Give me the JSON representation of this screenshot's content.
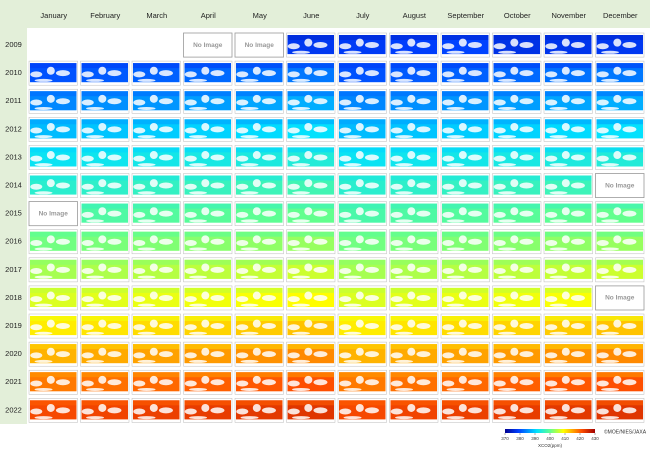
{
  "header": {
    "months": [
      "January",
      "February",
      "March",
      "April",
      "May",
      "June",
      "July",
      "August",
      "September",
      "October",
      "November",
      "December"
    ]
  },
  "rows": [
    {
      "year": "2009",
      "cells": [
        "No Image",
        "No Image",
        null,
        null,
        null,
        null,
        null,
        null,
        null
      ]
    },
    {
      "year": "2010",
      "cells": [
        null,
        null,
        null,
        null,
        null,
        null,
        null,
        null,
        null,
        null,
        null,
        null
      ]
    },
    {
      "year": "2011",
      "cells": [
        null,
        null,
        null,
        null,
        null,
        null,
        null,
        null,
        null,
        null,
        null,
        null
      ]
    },
    {
      "year": "2012",
      "cells": [
        null,
        null,
        null,
        null,
        null,
        null,
        null,
        null,
        null,
        null,
        null,
        null
      ]
    },
    {
      "year": "2013",
      "cells": [
        null,
        null,
        null,
        null,
        null,
        null,
        null,
        null,
        null,
        null,
        null,
        null
      ]
    },
    {
      "year": "2014",
      "cells": [
        null,
        null,
        null,
        null,
        null,
        null,
        null,
        null,
        null,
        null,
        null,
        "No Image"
      ]
    },
    {
      "year": "2015",
      "cells": [
        "No Image",
        null,
        null,
        null,
        null,
        null,
        null,
        null,
        null,
        null,
        null,
        null
      ]
    },
    {
      "year": "2016",
      "cells": [
        null,
        null,
        null,
        null,
        null,
        null,
        null,
        null,
        null,
        null,
        null,
        null
      ]
    },
    {
      "year": "2017",
      "cells": [
        null,
        null,
        null,
        null,
        null,
        null,
        null,
        null,
        null,
        null,
        null,
        null
      ]
    },
    {
      "year": "2018",
      "cells": [
        null,
        null,
        null,
        null,
        null,
        null,
        null,
        null,
        null,
        null,
        null,
        "No Image"
      ]
    },
    {
      "year": "2019",
      "cells": [
        null,
        null,
        null,
        null,
        null,
        null,
        null,
        null,
        null,
        null,
        null,
        null
      ]
    },
    {
      "year": "2020",
      "cells": [
        null,
        null,
        null,
        null,
        null,
        null,
        null,
        null,
        null,
        null,
        null,
        null
      ]
    },
    {
      "year": "2021",
      "cells": [
        null,
        null,
        null,
        null,
        null,
        null,
        null,
        null,
        null,
        null,
        null,
        null
      ]
    },
    {
      "year": "2022",
      "cells": [
        null,
        null,
        null,
        null,
        null,
        null,
        null,
        null,
        null,
        null,
        null,
        null
      ]
    }
  ],
  "colorbar": {
    "label": "XCO2(ppm)",
    "ticks": [
      370,
      380,
      390,
      400,
      410,
      420,
      430
    ]
  },
  "credit": "©MOE/NIES/JAXA"
}
